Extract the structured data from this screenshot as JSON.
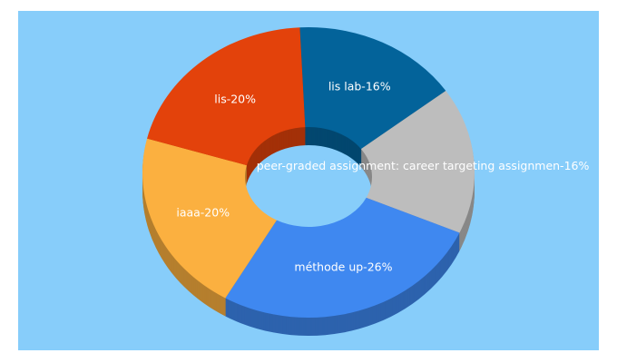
{
  "chart_data": {
    "type": "pie",
    "donut": true,
    "three_d": true,
    "labels": [
      "lis lab-16%",
      "peer-graded assignment: career targeting assignmen-16%",
      "méthode up-26%",
      "iaaa-20%",
      "lis-20%"
    ],
    "values": [
      16,
      16,
      26,
      20,
      20
    ],
    "colors": [
      "#03639a",
      "#bdbdbd",
      "#3f88f0",
      "#fbb040",
      "#e3420b"
    ],
    "background": "#87cdfa"
  }
}
